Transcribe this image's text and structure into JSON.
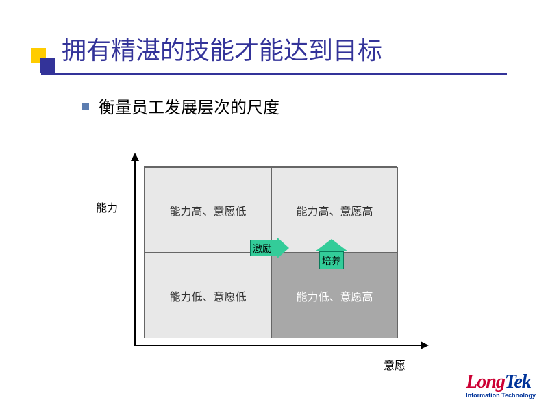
{
  "title": "拥有精湛的技能才能达到目标",
  "subtitle": "衡量员工发展层次的尺度",
  "title_color": "#333399",
  "decoration": {
    "yellow": "#ffcc00",
    "blue": "#333399"
  },
  "matrix": {
    "type": "quadrant",
    "y_axis_label": "能力",
    "x_axis_label": "意愿",
    "quadrants": {
      "top_left": {
        "label": "能力高、意愿低",
        "bg": "#e8e8e8",
        "fg": "#333333"
      },
      "top_right": {
        "label": "能力高、意愿高",
        "bg": "#e8e8e8",
        "fg": "#333333"
      },
      "bottom_left": {
        "label": "能力低、意愿低",
        "bg": "#e8e8e8",
        "fg": "#333333"
      },
      "bottom_right": {
        "label": "能力低、意愿高",
        "bg": "#a8a8a8",
        "fg": "#ffffff"
      }
    },
    "arrows": {
      "right": {
        "label": "激励",
        "fill": "#33cc99",
        "border": "#0a7a5a"
      },
      "up": {
        "label": "培养",
        "fill": "#33cc99",
        "border": "#0a7a5a"
      }
    },
    "axis_color": "#000000",
    "grid_border": "#666666"
  },
  "logo": {
    "text": "LongTek",
    "long_color": "#cc0033",
    "tek_color": "#003399",
    "subtitle": "Information Technology",
    "subtitle_color": "#003399"
  }
}
